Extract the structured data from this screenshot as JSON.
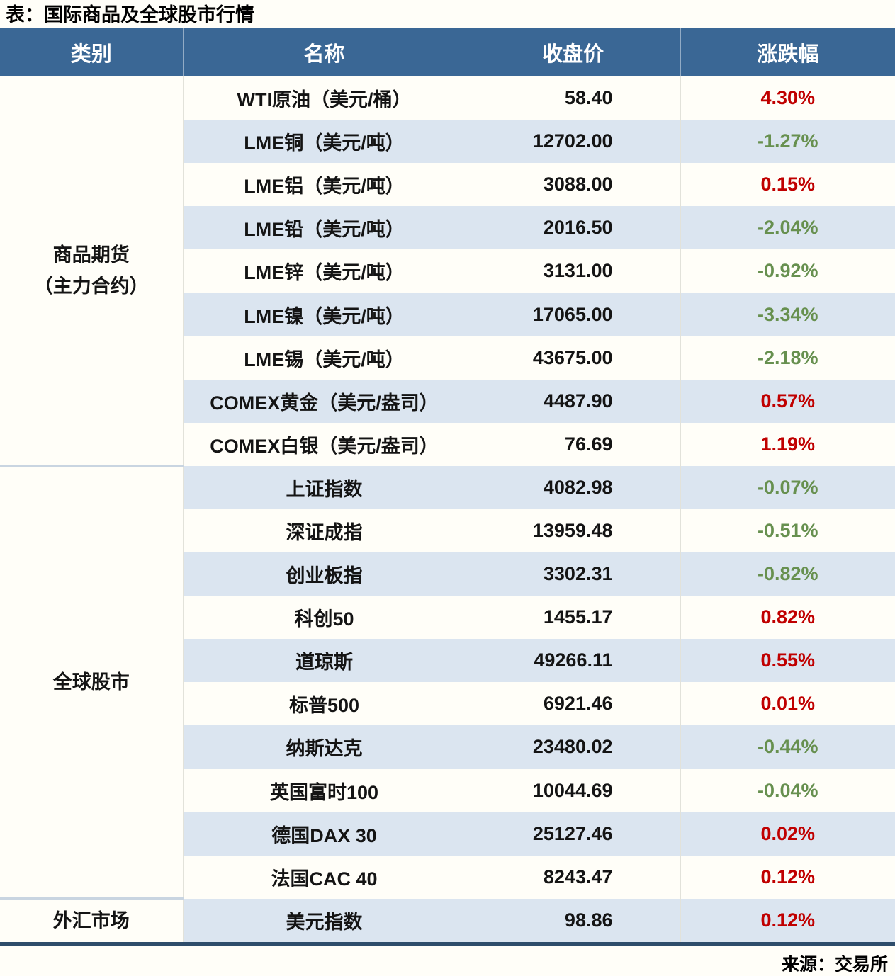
{
  "title": "表：国际商品及全球股市行情",
  "source": "来源：交易所",
  "colors": {
    "header_bg": "#3A6795",
    "stripe_bg": "#DBE5F0",
    "up_red": "#C00000",
    "down_green": "#67904F",
    "page_bg": "#FFFEF8",
    "group_separator": "#C9D5E1",
    "bottom_border": "#2E4D6B"
  },
  "chart_data": {
    "type": "table",
    "title": "表：国际商品及全球股市行情",
    "columns": [
      "类别",
      "名称",
      "收盘价",
      "涨跌幅"
    ],
    "groups": [
      {
        "category": "商品期货（主力合约）",
        "category_lines": [
          "商品期货",
          "（主力合约）"
        ],
        "rows": [
          {
            "name": "WTI原油（美元/桶）",
            "close": "58.40",
            "change": "4.30%"
          },
          {
            "name": "LME铜（美元/吨）",
            "close": "12702.00",
            "change": "-1.27%"
          },
          {
            "name": "LME铝（美元/吨）",
            "close": "3088.00",
            "change": "0.15%"
          },
          {
            "name": "LME铅（美元/吨）",
            "close": "2016.50",
            "change": "-2.04%"
          },
          {
            "name": "LME锌（美元/吨）",
            "close": "3131.00",
            "change": "-0.92%"
          },
          {
            "name": "LME镍（美元/吨）",
            "close": "17065.00",
            "change": "-3.34%"
          },
          {
            "name": "LME锡（美元/吨）",
            "close": "43675.00",
            "change": "-2.18%"
          },
          {
            "name": "COMEX黄金（美元/盎司）",
            "close": "4487.90",
            "change": "0.57%"
          },
          {
            "name": "COMEX白银（美元/盎司）",
            "close": "76.69",
            "change": "1.19%"
          }
        ]
      },
      {
        "category": "全球股市",
        "category_lines": [
          "全球股市"
        ],
        "rows": [
          {
            "name": "上证指数",
            "close": "4082.98",
            "change": "-0.07%"
          },
          {
            "name": "深证成指",
            "close": "13959.48",
            "change": "-0.51%"
          },
          {
            "name": "创业板指",
            "close": "3302.31",
            "change": "-0.82%"
          },
          {
            "name": "科创50",
            "close": "1455.17",
            "change": "0.82%"
          },
          {
            "name": "道琼斯",
            "close": "49266.11",
            "change": "0.55%"
          },
          {
            "name": "标普500",
            "close": "6921.46",
            "change": "0.01%"
          },
          {
            "name": "纳斯达克",
            "close": "23480.02",
            "change": "-0.44%"
          },
          {
            "name": "英国富时100",
            "close": "10044.69",
            "change": "-0.04%"
          },
          {
            "name": "德国DAX 30",
            "close": "25127.46",
            "change": "0.02%"
          },
          {
            "name": "法国CAC 40",
            "close": "8243.47",
            "change": "0.12%"
          }
        ]
      },
      {
        "category": "外汇市场",
        "category_lines": [
          "外汇市场"
        ],
        "rows": [
          {
            "name": "美元指数",
            "close": "98.86",
            "change": "0.12%"
          }
        ]
      }
    ]
  }
}
